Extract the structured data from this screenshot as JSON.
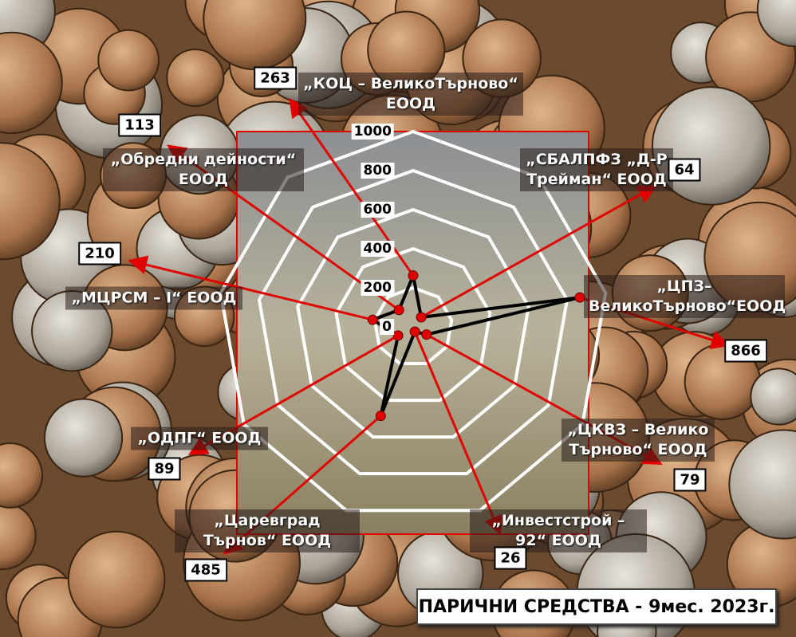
{
  "chart_data": {
    "type": "radar",
    "title": "ПАРИЧНИ СРЕДСТВА - 9мес. 2023г.",
    "categories": [
      "„КОЦ – ВеликоТърново“ ЕООД",
      "„СБАЛПФЗ „Д-Р Трейман“ ЕООД",
      "„ЦПЗ–ВеликоТърново“ЕООД",
      "„ЦКВЗ – Велико Търново“ ЕООД",
      "„Инвестстрой – 92“ ЕООД",
      "„Царевград Търнов“ ЕООД",
      "„ОДПГ“ ЕООД",
      "„МЦРСМ – I“ ЕООД",
      "„Обредни дейности“ ЕООД"
    ],
    "values": [
      263,
      64,
      866,
      79,
      26,
      485,
      89,
      210,
      113
    ],
    "color": "#000000",
    "marker_color": "#e00000",
    "arrow_color": "#e00000",
    "ylim": [
      0,
      1000
    ],
    "yticks": [
      0,
      200,
      400,
      600,
      800,
      1000
    ],
    "grid": true
  }
}
